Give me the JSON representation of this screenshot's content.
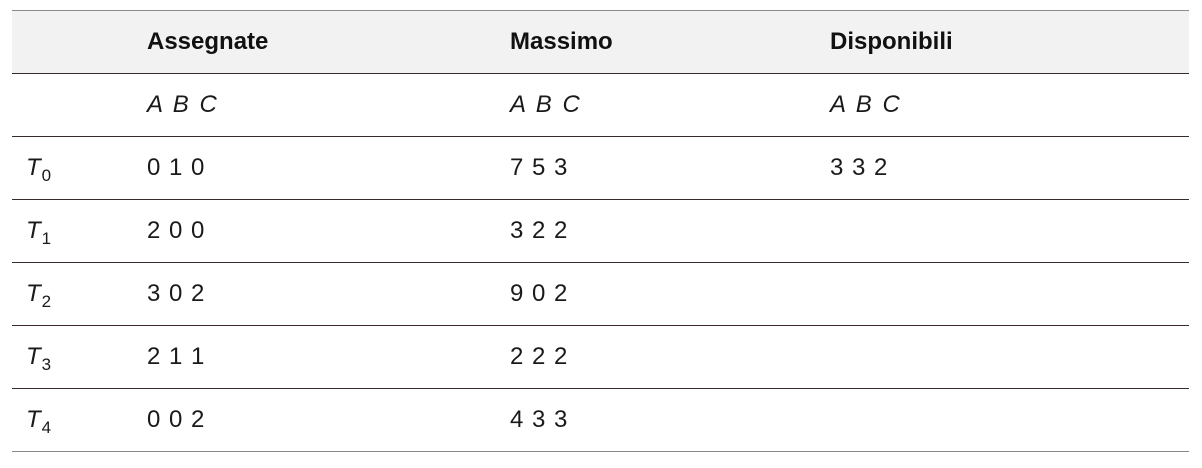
{
  "table": {
    "headers": [
      "",
      "Assegnate",
      "Massimo",
      "Disponibili"
    ],
    "resource_labels": {
      "assegnate": "A B C",
      "massimo": "A B C",
      "disponibili": "A B C"
    },
    "rows": [
      {
        "thread": "T",
        "index": "0",
        "assegnate": "0 1 0",
        "massimo": "7 5 3",
        "disponibili": "3 3 2"
      },
      {
        "thread": "T",
        "index": "1",
        "assegnate": "2 0 0",
        "massimo": "3 2 2",
        "disponibili": ""
      },
      {
        "thread": "T",
        "index": "2",
        "assegnate": "3 0 2",
        "massimo": "9 0 2",
        "disponibili": ""
      },
      {
        "thread": "T",
        "index": "3",
        "assegnate": "2 1 1",
        "massimo": "2 2 2",
        "disponibili": ""
      },
      {
        "thread": "T",
        "index": "4",
        "assegnate": "0 0 2",
        "massimo": "4 3 3",
        "disponibili": ""
      }
    ]
  }
}
